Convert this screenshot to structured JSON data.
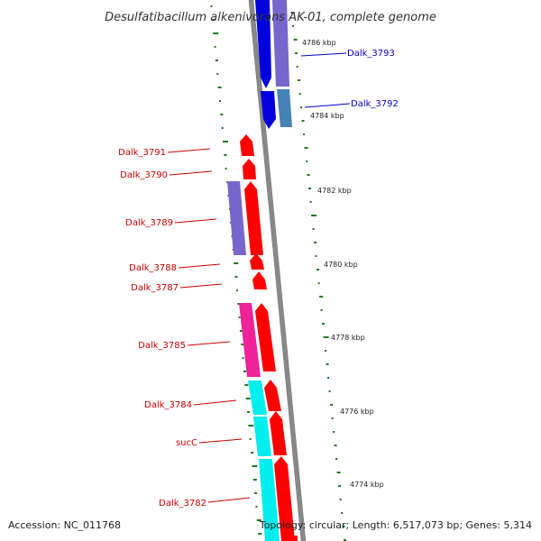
{
  "title": "Desulfatibacillum alkenivorans AK-01, complete genome",
  "accession": "Accession: NC_011768",
  "topology": "Topology: circular; Length: 6,517,073 bp; Genes: 5,314",
  "positions": [
    "4786 kbp",
    "4784 kbp",
    "4782 kbp",
    "4780 kbp",
    "4778 kbp",
    "4776 kbp",
    "4774 kbp"
  ],
  "genes": [
    {
      "label": "Dalk_3793",
      "side": "right",
      "color": "#0000cc"
    },
    {
      "label": "Dalk_3792",
      "side": "right",
      "color": "#0000cc"
    },
    {
      "label": "Dalk_3791",
      "side": "left",
      "color": "#cc0000"
    },
    {
      "label": "Dalk_3790",
      "side": "left",
      "color": "#cc0000"
    },
    {
      "label": "Dalk_3789",
      "side": "left",
      "color": "#cc0000"
    },
    {
      "label": "Dalk_3788",
      "side": "left",
      "color": "#cc0000"
    },
    {
      "label": "Dalk_3787",
      "side": "left",
      "color": "#cc0000"
    },
    {
      "label": "Dalk_3785",
      "side": "left",
      "color": "#cc0000"
    },
    {
      "label": "Dalk_3784",
      "side": "left",
      "color": "#cc0000"
    },
    {
      "label": "sucC",
      "side": "left",
      "color": "#cc0000"
    },
    {
      "label": "Dalk_3782",
      "side": "left",
      "color": "#cc0000"
    }
  ],
  "colors": {
    "backbone": "#888888",
    "tick": "#1f7a1f",
    "cds_reverse": "#0000dd",
    "cds_forward": "#ff0000",
    "feature_purple": "#7766cc",
    "feature_steel": "#4682b4",
    "feature_magenta": "#ee2299",
    "feature_cyan": "#00eeee"
  }
}
